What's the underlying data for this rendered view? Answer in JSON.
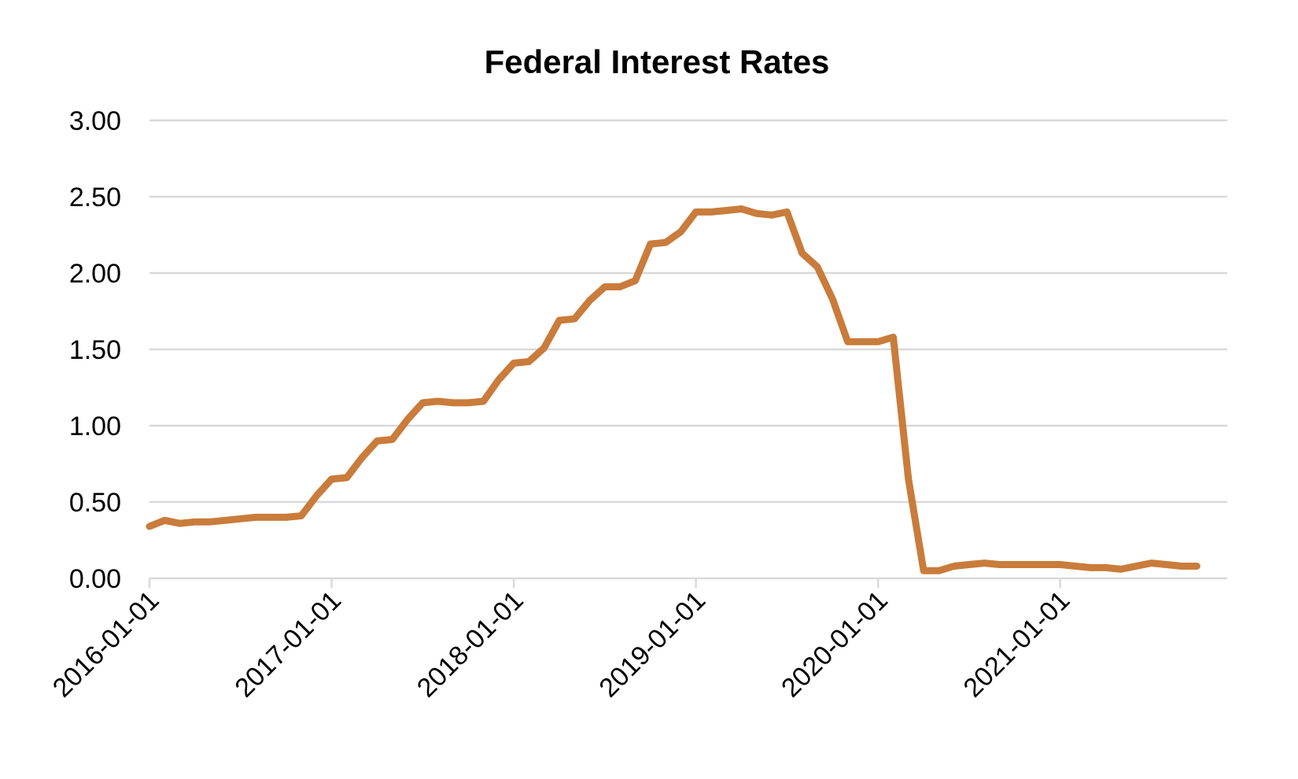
{
  "chart_data": {
    "type": "line",
    "title": "Federal Interest Rates",
    "xlabel": "",
    "ylabel": "",
    "ylim": [
      0,
      3
    ],
    "yticks": [
      "0.00",
      "0.50",
      "1.00",
      "1.50",
      "2.00",
      "2.50",
      "3.00"
    ],
    "xticks": [
      "2016-01-01",
      "2017-01-01",
      "2018-01-01",
      "2019-01-01",
      "2020-01-01",
      "2021-01-01"
    ],
    "xlim": [
      "2016-01-01",
      "2021-12-01"
    ],
    "grid": true,
    "legend": "none",
    "colors": {
      "series": "#c97c3b",
      "grid": "#d9d9d9",
      "text": "#000000"
    },
    "series": [
      {
        "x": [
          "2016-01-01",
          "2016-02-01",
          "2016-03-01",
          "2016-04-01",
          "2016-05-01",
          "2016-06-01",
          "2016-07-01",
          "2016-08-01",
          "2016-09-01",
          "2016-10-01",
          "2016-11-01",
          "2016-12-01",
          "2017-01-01",
          "2017-02-01",
          "2017-03-01",
          "2017-04-01",
          "2017-05-01",
          "2017-06-01",
          "2017-07-01",
          "2017-08-01",
          "2017-09-01",
          "2017-10-01",
          "2017-11-01",
          "2017-12-01",
          "2018-01-01",
          "2018-02-01",
          "2018-03-01",
          "2018-04-01",
          "2018-05-01",
          "2018-06-01",
          "2018-07-01",
          "2018-08-01",
          "2018-09-01",
          "2018-10-01",
          "2018-11-01",
          "2018-12-01",
          "2019-01-01",
          "2019-02-01",
          "2019-03-01",
          "2019-04-01",
          "2019-05-01",
          "2019-06-01",
          "2019-07-01",
          "2019-08-01",
          "2019-09-01",
          "2019-10-01",
          "2019-11-01",
          "2019-12-01",
          "2020-01-01",
          "2020-02-01",
          "2020-03-01",
          "2020-04-01",
          "2020-05-01",
          "2020-06-01",
          "2020-07-01",
          "2020-08-01",
          "2020-09-01",
          "2020-10-01",
          "2020-11-01",
          "2020-12-01",
          "2021-01-01",
          "2021-02-01",
          "2021-03-01",
          "2021-04-01",
          "2021-05-01",
          "2021-06-01",
          "2021-07-01",
          "2021-08-01",
          "2021-09-01",
          "2021-10-01"
        ],
        "values": [
          0.34,
          0.38,
          0.36,
          0.37,
          0.37,
          0.38,
          0.39,
          0.4,
          0.4,
          0.4,
          0.41,
          0.54,
          0.65,
          0.66,
          0.79,
          0.9,
          0.91,
          1.04,
          1.15,
          1.16,
          1.15,
          1.15,
          1.16,
          1.3,
          1.41,
          1.42,
          1.51,
          1.69,
          1.7,
          1.82,
          1.91,
          1.91,
          1.95,
          2.19,
          2.2,
          2.27,
          2.4,
          2.4,
          2.41,
          2.42,
          2.39,
          2.38,
          2.4,
          2.13,
          2.04,
          1.83,
          1.55,
          1.55,
          1.55,
          1.58,
          0.65,
          0.05,
          0.05,
          0.08,
          0.09,
          0.1,
          0.09,
          0.09,
          0.09,
          0.09,
          0.09,
          0.08,
          0.07,
          0.07,
          0.06,
          0.08,
          0.1,
          0.09,
          0.08,
          0.08
        ]
      }
    ]
  }
}
